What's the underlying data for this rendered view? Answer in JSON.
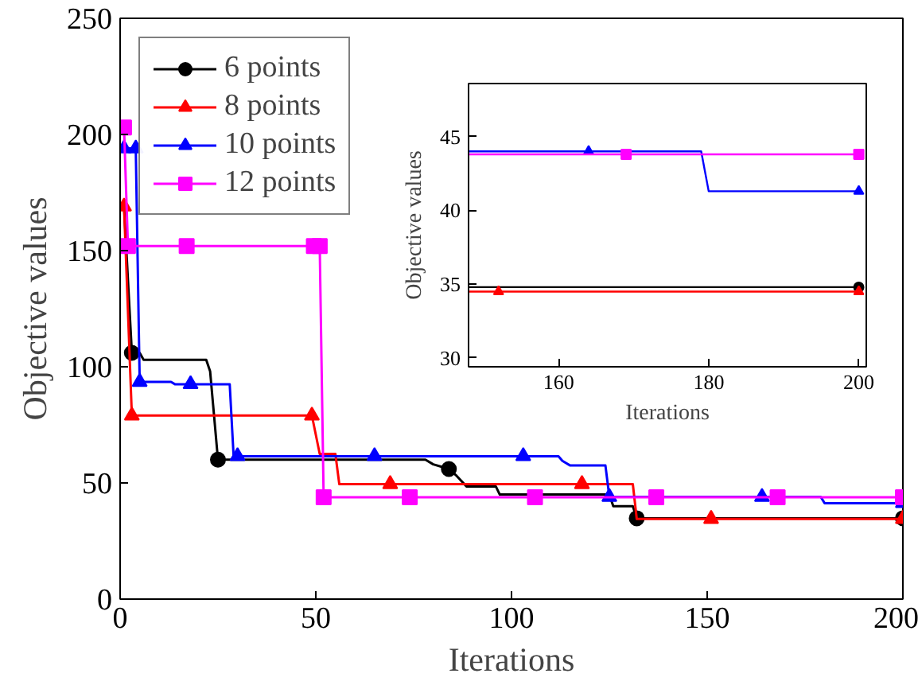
{
  "chart_data": [
    {
      "type": "line",
      "xlabel": "Iterations",
      "ylabel": "Objective values",
      "xlim": [
        0,
        200
      ],
      "ylim": [
        0,
        250
      ],
      "xticks": [
        0,
        50,
        100,
        150,
        200
      ],
      "yticks": [
        0,
        50,
        100,
        150,
        200,
        250
      ],
      "grid": false,
      "legend": "top left",
      "series": [
        {
          "name": "6 points",
          "color": "#000000",
          "x": [
            1,
            3,
            5,
            6,
            22,
            23,
            25,
            78,
            80,
            82,
            84,
            86,
            88.5,
            96,
            97,
            125,
            126,
            131,
            132,
            200
          ],
          "values": [
            169,
            106,
            106,
            103,
            103,
            98,
            60,
            60,
            58,
            57,
            56,
            53,
            48.5,
            48.5,
            45,
            45,
            40,
            40,
            34.8,
            34.8
          ]
        },
        {
          "type": "scatter",
          "color": "#000000",
          "marker": "circle",
          "x": [
            3,
            25,
            84,
            132,
            200
          ],
          "values": [
            106,
            60,
            56,
            34.8,
            34.8
          ]
        },
        {
          "name": "8 points",
          "color": "#ff0000",
          "x": [
            1,
            3,
            49,
            51,
            55,
            56,
            131,
            132,
            200
          ],
          "values": [
            169,
            79,
            79,
            62.5,
            62.5,
            49.5,
            49.5,
            34.5,
            34.5
          ]
        },
        {
          "type": "scatter",
          "color": "#ff0000",
          "marker": "triangle",
          "x": [
            1,
            3,
            49,
            69,
            118,
            151,
            200
          ],
          "values": [
            169,
            79,
            79,
            49.5,
            49.5,
            34.5,
            34.5
          ]
        },
        {
          "name": "10 points",
          "color": "#0000ff",
          "x": [
            1,
            4,
            5,
            13,
            14,
            28,
            29,
            112,
            113,
            115,
            124,
            125,
            179,
            180,
            200
          ],
          "values": [
            194,
            194,
            93.5,
            93.5,
            92.5,
            92.5,
            61.5,
            61.5,
            59.5,
            57.5,
            57.5,
            44,
            44,
            41.3,
            41.3
          ]
        },
        {
          "type": "scatter",
          "color": "#0000ff",
          "marker": "triangle",
          "x": [
            1,
            4,
            5,
            18,
            30,
            65,
            103,
            125,
            164,
            200
          ],
          "values": [
            194,
            194,
            93.5,
            92.5,
            61.5,
            61.5,
            61.5,
            44,
            44,
            41.3
          ]
        },
        {
          "name": "12 points",
          "color": "#ff00ff",
          "x": [
            1,
            2,
            51,
            52,
            200
          ],
          "values": [
            203,
            152,
            152,
            43.8,
            43.8
          ]
        },
        {
          "type": "scatter",
          "color": "#ff00ff",
          "marker": "square",
          "x": [
            1,
            2,
            17,
            49.5,
            51,
            52,
            74,
            106,
            137,
            168,
            200
          ],
          "values": [
            203,
            152,
            152,
            152,
            152,
            43.8,
            43.8,
            43.8,
            43.8,
            43.8,
            43.8
          ]
        }
      ]
    },
    {
      "type": "line",
      "xlabel": "Iterations",
      "ylabel": "Objective values",
      "xlim": [
        148,
        201
      ],
      "ylim": [
        29.4,
        48.6
      ],
      "xticks": [
        160,
        180,
        200
      ],
      "yticks": [
        30,
        35,
        40,
        45
      ],
      "grid": false,
      "series": [
        {
          "color": "#000000",
          "x": [
            148,
            200
          ],
          "values": [
            34.8,
            34.8
          ]
        },
        {
          "type": "scatter",
          "color": "#000000",
          "marker": "circle",
          "x": [
            200
          ],
          "values": [
            34.8
          ]
        },
        {
          "color": "#ff0000",
          "x": [
            148,
            200
          ],
          "values": [
            34.5,
            34.5
          ]
        },
        {
          "type": "scatter",
          "color": "#ff0000",
          "marker": "triangle",
          "x": [
            152,
            200
          ],
          "values": [
            34.5,
            34.5
          ]
        },
        {
          "color": "#0000ff",
          "x": [
            148,
            179,
            180,
            200
          ],
          "values": [
            44,
            44,
            41.3,
            41.3
          ]
        },
        {
          "type": "scatter",
          "color": "#0000ff",
          "marker": "triangle",
          "x": [
            164,
            200
          ],
          "values": [
            44,
            41.3
          ]
        },
        {
          "color": "#ff00ff",
          "x": [
            148,
            200
          ],
          "values": [
            43.8,
            43.8
          ]
        },
        {
          "type": "scatter",
          "color": "#ff00ff",
          "marker": "square",
          "x": [
            169,
            200
          ],
          "values": [
            43.8,
            43.8
          ]
        }
      ]
    }
  ]
}
